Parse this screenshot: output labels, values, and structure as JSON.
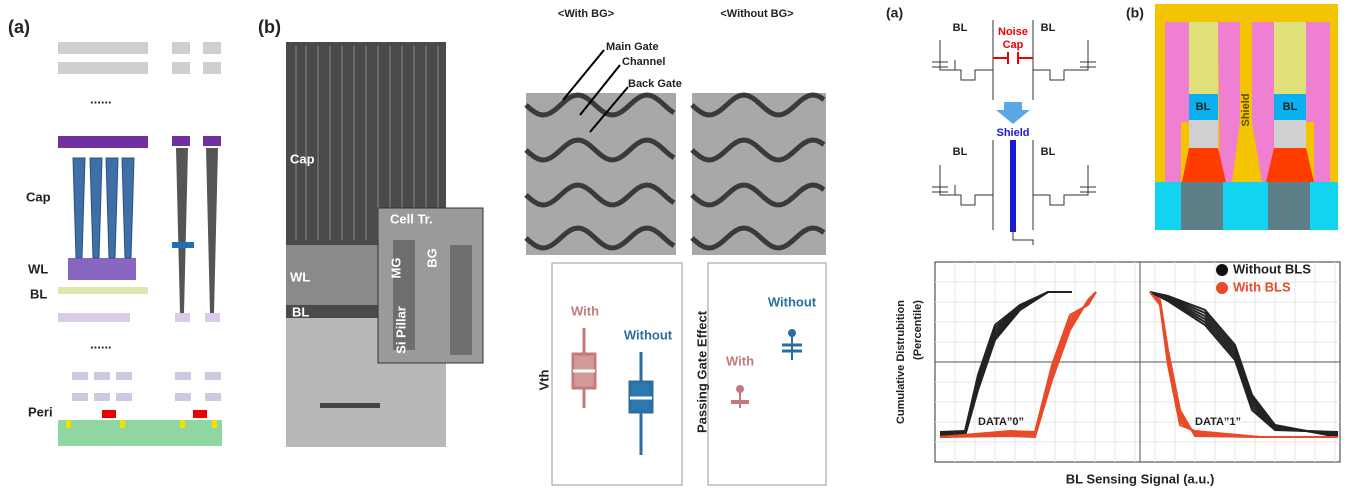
{
  "panel_a": {
    "label": "(a)",
    "layers": [
      "Cap",
      "WL",
      "BL",
      "Peri"
    ],
    "dots": [
      "......",
      "......"
    ]
  },
  "panel_b": {
    "label": "(b)",
    "layers": [
      "Cap",
      "WL",
      "BL"
    ],
    "inset": [
      "Cell Tr.",
      "MG",
      "BG",
      "Si Pillar"
    ]
  },
  "tem": {
    "titles": [
      "<With BG>",
      "<Without BG>"
    ],
    "callouts": [
      "Main Gate",
      "Channel",
      "Back Gate"
    ]
  },
  "vth_plot": {
    "axis": "Vth",
    "groups": [
      "With",
      "Without"
    ]
  },
  "pge_plot": {
    "axis": "Passing Gate Effect",
    "groups": [
      "With",
      "Without"
    ]
  },
  "circuit": {
    "label": "(a)",
    "top": {
      "bl": [
        "BL",
        "BL"
      ],
      "noise": "Noise",
      "cap": "Cap"
    },
    "bottom": {
      "shield": "Shield",
      "bl": [
        "BL",
        "BL"
      ]
    }
  },
  "cross_section": {
    "label": "(b)",
    "bl": [
      "BL",
      "BL"
    ],
    "shield": "Shield"
  },
  "cdf": {
    "legend": [
      "Without BLS",
      "With BLS"
    ],
    "y_axis": [
      "Cumulative Distrubition",
      "(Percentile)"
    ],
    "annotations": [
      "DATA”0”",
      "DATA”1”"
    ],
    "x_axis": "BL Sensing Signal (a.u.)"
  }
}
